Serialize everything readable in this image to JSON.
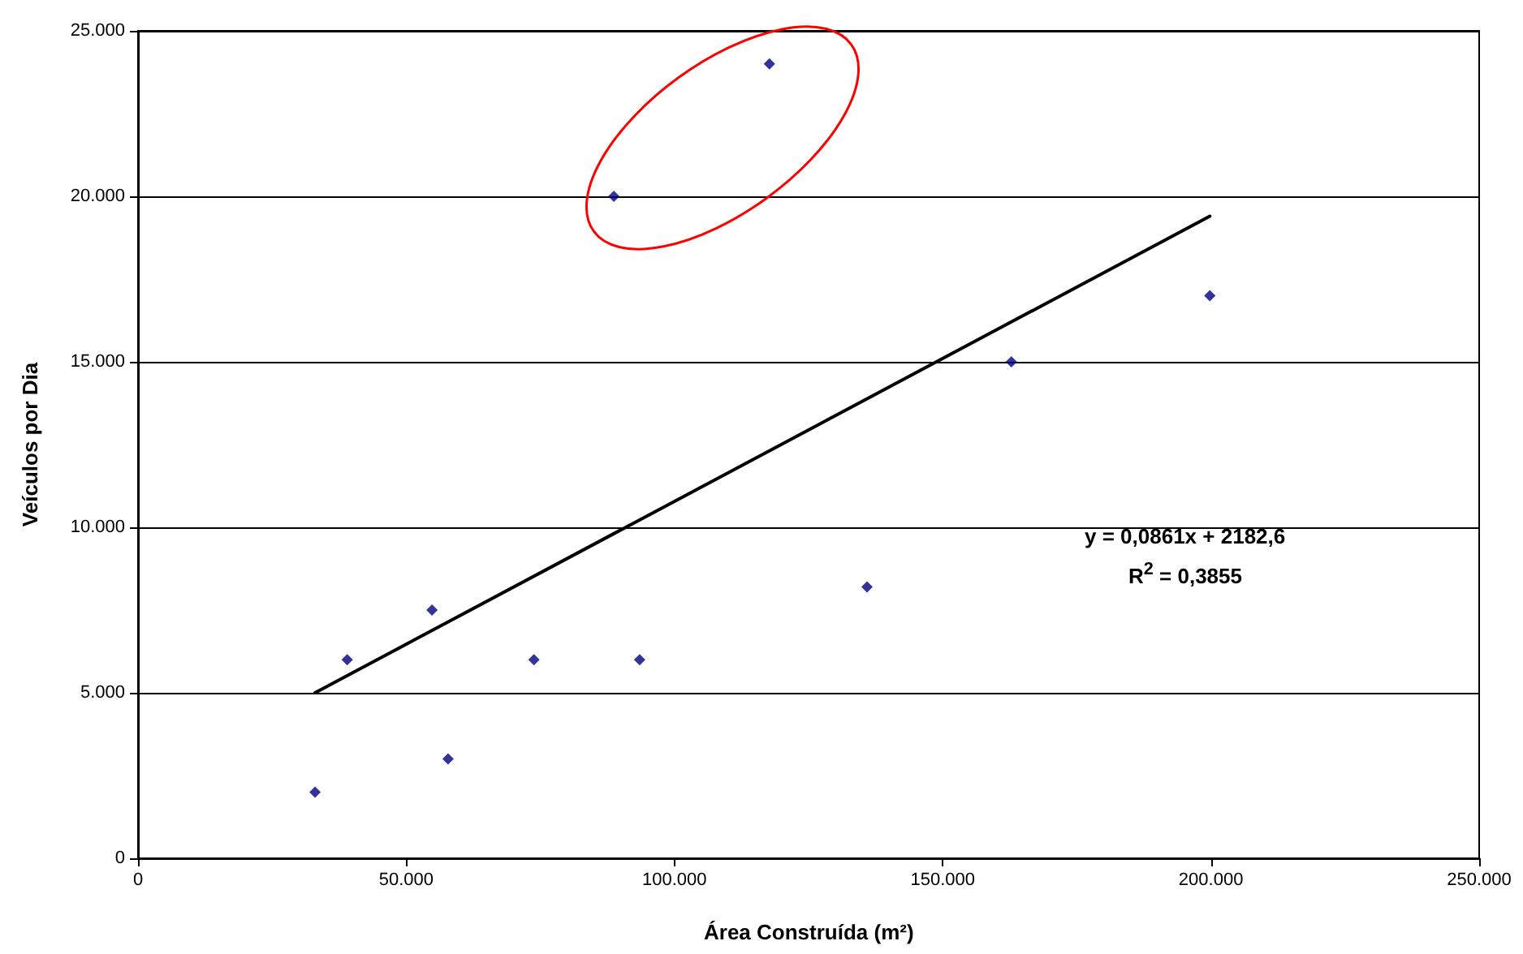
{
  "chart_data": {
    "type": "scatter",
    "xlabel": "Área Construída (m²)",
    "ylabel": "Veículos por Dia",
    "xlim": [
      0,
      250000
    ],
    "ylim": [
      0,
      25000
    ],
    "xticks": [
      {
        "value": 0,
        "label": "0"
      },
      {
        "value": 50000,
        "label": "50.000"
      },
      {
        "value": 100000,
        "label": "100.000"
      },
      {
        "value": 150000,
        "label": "150.000"
      },
      {
        "value": 200000,
        "label": "200.000"
      },
      {
        "value": 250000,
        "label": "250.000"
      }
    ],
    "yticks": [
      {
        "value": 0,
        "label": "0"
      },
      {
        "value": 5000,
        "label": "5.000"
      },
      {
        "value": 10000,
        "label": "10.000"
      },
      {
        "value": 15000,
        "label": "15.000"
      },
      {
        "value": 20000,
        "label": "20.000"
      },
      {
        "value": 25000,
        "label": "25.000"
      }
    ],
    "grid": "y",
    "marker": "diamond",
    "series": [
      {
        "color": "#000080",
        "x": [
          33000,
          39000,
          54800,
          57800,
          73800,
          88700,
          93500,
          117700,
          135900,
          162800,
          199800
        ],
        "values": [
          2000,
          6000,
          7500,
          3000,
          6000,
          20000,
          6000,
          24000,
          8200,
          15000,
          17000
        ]
      },
      {
        "type": "line",
        "color": "#000000",
        "marker": "none",
        "line_style": "solid",
        "x": [
          33000,
          199800
        ],
        "values": [
          5000,
          19400
        ]
      }
    ],
    "annotations": [
      "y = 0,0861x + 2182,6",
      "R$^{2}$ = 0,3855"
    ]
  }
}
